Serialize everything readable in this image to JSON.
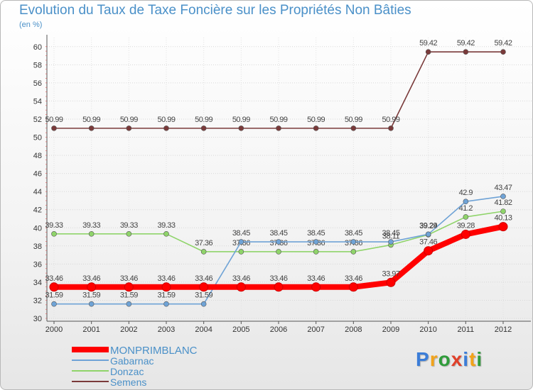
{
  "title": "Evolution du Taux de Taxe Foncière sur les Propriétés Non Bâties",
  "unit": "(en %)",
  "logo": {
    "text": "Proxiti",
    "colors": [
      "#3b7dd8",
      "#f2a31a",
      "#2f9c3a",
      "#e0402a",
      "#3b7dd8",
      "#f2a31a",
      "#2f9c3a"
    ]
  },
  "chart_data": {
    "type": "line",
    "title": "Evolution du Taux de Taxe Foncière sur les Propriétés Non Bâties",
    "ylabel": "(en %)",
    "xlabel": "",
    "ylim": [
      30,
      61
    ],
    "yticks": [
      30,
      32,
      34,
      36,
      38,
      40,
      42,
      44,
      46,
      48,
      50,
      52,
      54,
      56,
      58,
      60
    ],
    "categories": [
      "2000",
      "2001",
      "2002",
      "2003",
      "2004",
      "2005",
      "2006",
      "2007",
      "2008",
      "2009",
      "2010",
      "2011",
      "2012"
    ],
    "grid": true,
    "series": [
      {
        "name": "Semens",
        "color": "#7a3a3a",
        "values": [
          50.99,
          50.99,
          50.99,
          50.99,
          50.99,
          50.99,
          50.99,
          50.99,
          50.99,
          50.99,
          59.42,
          59.42,
          59.42
        ],
        "labels": [
          "50.99",
          "50.99",
          "50.99",
          "50.99",
          "50.99",
          "50.99",
          "50.99",
          "50.99",
          "50.99",
          "50.99",
          "59.42",
          "59.42",
          "59.42"
        ]
      },
      {
        "name": "Donzac",
        "color": "#8fd46a",
        "values": [
          39.33,
          39.33,
          39.33,
          39.33,
          37.36,
          37.36,
          37.36,
          37.36,
          37.36,
          38.11,
          39.24,
          41.2,
          41.82
        ],
        "labels": [
          "39.33",
          "39.33",
          "39.33",
          "39.33",
          "37.36",
          "37.36",
          "37.36",
          "37.36",
          "37.36",
          "38.11",
          "39.24",
          "41.2",
          "41.82"
        ]
      },
      {
        "name": "Gabarnac",
        "color": "#6fa3d6",
        "values": [
          31.59,
          31.59,
          31.59,
          31.59,
          31.59,
          38.45,
          38.45,
          38.45,
          38.45,
          38.45,
          39.29,
          42.9,
          43.47
        ],
        "labels": [
          "31.59",
          "31.59",
          "31.59",
          "31.59",
          "31.59",
          "38.45",
          "38.45",
          "38.45",
          "38.45",
          "38.45",
          "39.29",
          "42.9",
          "43.47"
        ]
      },
      {
        "name": "MONPRIMBLANC",
        "color": "#ff0000",
        "values": [
          33.46,
          33.46,
          33.46,
          33.46,
          33.46,
          33.46,
          33.46,
          33.46,
          33.46,
          33.97,
          37.46,
          39.28,
          40.13
        ],
        "labels": [
          "33.46",
          "33.46",
          "33.46",
          "33.46",
          "33.46",
          "33.46",
          "33.46",
          "33.46",
          "33.46",
          "33.97",
          "37.46",
          "39.28",
          "40.13"
        ]
      }
    ],
    "legend": [
      {
        "name": "MONPRIMBLANC",
        "color": "#ff0000"
      },
      {
        "name": "Gabarnac",
        "color": "#6fa3d6"
      },
      {
        "name": "Donzac",
        "color": "#8fd46a"
      },
      {
        "name": "Semens",
        "color": "#7a3a3a"
      }
    ]
  }
}
